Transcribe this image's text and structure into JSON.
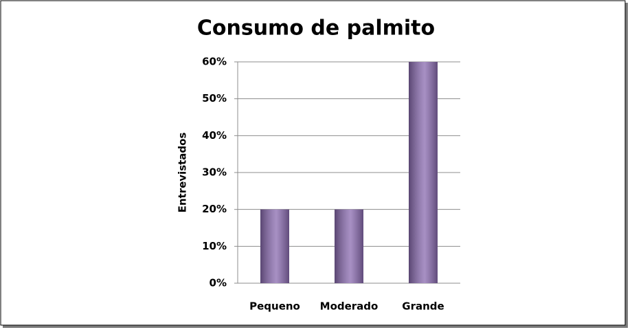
{
  "chart_data": {
    "type": "bar",
    "title": "Consumo de palmito",
    "y_label": "Entrevistados",
    "categories": [
      "Pequeno",
      "Moderado",
      "Grande"
    ],
    "values": [
      20,
      20,
      60
    ],
    "color": "#8a6bb0",
    "ylim": [
      0,
      60
    ],
    "yticks": [
      {
        "value": 0,
        "label": "0%"
      },
      {
        "value": 10,
        "label": "10%"
      },
      {
        "value": 20,
        "label": "20%"
      },
      {
        "value": 30,
        "label": "30%"
      },
      {
        "value": 40,
        "label": "40%"
      },
      {
        "value": 50,
        "label": "50%"
      },
      {
        "value": 60,
        "label": "60%"
      }
    ],
    "grid": true
  }
}
